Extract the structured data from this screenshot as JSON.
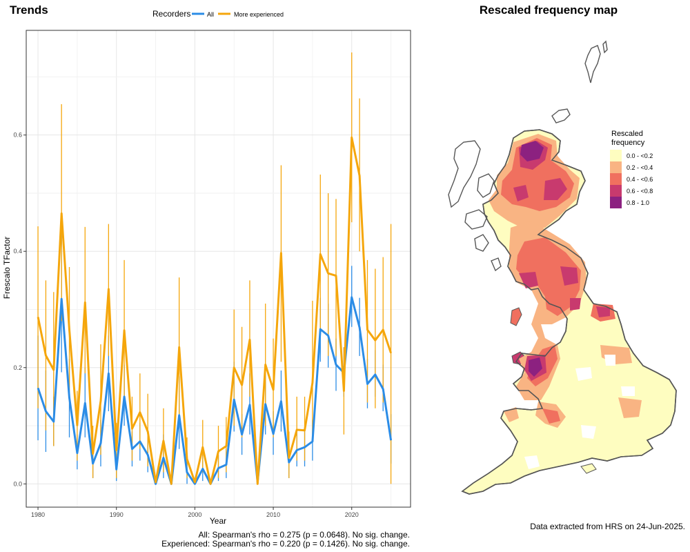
{
  "left_panel": {
    "title": "Trends"
  },
  "right_panel": {
    "title": "Rescaled frequency map"
  },
  "stats": [
    "All: Spearman's rho = 0.275 (p = 0.0648). No sig. change.",
    "Experienced: Spearman's rho = 0.220 (p = 0.1426). No sig. change."
  ],
  "credit": "Data extracted from HRS on 24-Jun-2025.",
  "map_legend": {
    "title_lines": [
      "Rescaled",
      "frequency"
    ],
    "items": [
      {
        "label": "0.0 - <0.2",
        "color": "#fefdc0"
      },
      {
        "label": "0.2 - <0.4",
        "color": "#f9b483"
      },
      {
        "label": "0.4 - <0.6",
        "color": "#f0705f"
      },
      {
        "label": "0.6 - <0.8",
        "color": "#c83a6e"
      },
      {
        "label": "0.8 - 1.0",
        "color": "#8c2180"
      }
    ]
  },
  "chart_data": {
    "type": "line",
    "xlabel": "Year",
    "ylabel": "Frescalo TFactor",
    "xlim": [
      1978.5,
      2027.5
    ],
    "ylim": [
      -0.04,
      0.78
    ],
    "x_ticks": [
      1980,
      1990,
      2000,
      2010,
      2020
    ],
    "y_ticks": [
      0.0,
      0.2,
      0.4,
      0.6
    ],
    "y_tick_labels": [
      "0.0",
      "0.2",
      "0.4",
      "0.6"
    ],
    "grid": true,
    "legend": {
      "title": "Recorders",
      "position": "top"
    },
    "x": [
      1980,
      1981,
      1982,
      1983,
      1984,
      1985,
      1986,
      1987,
      1988,
      1989,
      1990,
      1991,
      1992,
      1993,
      1994,
      1995,
      1996,
      1997,
      1998,
      1999,
      2000,
      2001,
      2002,
      2003,
      2004,
      2005,
      2006,
      2007,
      2008,
      2009,
      2010,
      2011,
      2012,
      2013,
      2014,
      2015,
      2016,
      2017,
      2018,
      2019,
      2020,
      2021,
      2022,
      2023,
      2024,
      2025
    ],
    "series": [
      {
        "name": "All",
        "color": "#2b8ce6",
        "values": [
          0.165,
          0.125,
          0.107,
          0.318,
          0.148,
          0.053,
          0.139,
          0.035,
          0.07,
          0.19,
          0.025,
          0.15,
          0.06,
          0.073,
          0.05,
          0.0,
          0.045,
          0.0,
          0.118,
          0.02,
          0.0,
          0.026,
          0.0,
          0.027,
          0.033,
          0.145,
          0.085,
          0.136,
          0.003,
          0.137,
          0.086,
          0.142,
          0.037,
          0.058,
          0.063,
          0.073,
          0.266,
          0.255,
          0.205,
          0.191,
          0.321,
          0.269,
          0.172,
          0.188,
          0.163,
          0.075
        ],
        "lower": [
          0.075,
          0.055,
          0.065,
          0.192,
          0.08,
          0.025,
          0.08,
          0.01,
          0.03,
          0.125,
          0.005,
          0.1,
          0.03,
          0.04,
          0.02,
          0.0,
          0.01,
          0.0,
          0.06,
          0.0,
          0.0,
          0.005,
          0.0,
          0.005,
          0.01,
          0.09,
          0.05,
          0.085,
          0.0,
          0.085,
          0.05,
          0.09,
          0.01,
          0.03,
          0.03,
          0.04,
          0.21,
          0.2,
          0.16,
          0.15,
          0.27,
          0.22,
          0.13,
          0.15,
          0.125,
          0.035
        ],
        "upper": [
          0.255,
          0.195,
          0.15,
          0.445,
          0.215,
          0.085,
          0.2,
          0.06,
          0.11,
          0.255,
          0.045,
          0.205,
          0.09,
          0.105,
          0.08,
          0.0,
          0.085,
          0.0,
          0.185,
          0.04,
          0.0,
          0.05,
          0.0,
          0.05,
          0.06,
          0.21,
          0.12,
          0.19,
          0.01,
          0.19,
          0.125,
          0.195,
          0.065,
          0.09,
          0.095,
          0.11,
          0.32,
          0.31,
          0.25,
          0.235,
          0.375,
          0.32,
          0.215,
          0.23,
          0.205,
          0.12
        ]
      },
      {
        "name": "More experienced",
        "color": "#f5a60b",
        "values": [
          0.287,
          0.221,
          0.196,
          0.465,
          0.265,
          0.101,
          0.312,
          0.052,
          0.143,
          0.335,
          0.058,
          0.264,
          0.095,
          0.123,
          0.09,
          0.003,
          0.074,
          0.0,
          0.235,
          0.043,
          0.003,
          0.063,
          0.0,
          0.056,
          0.065,
          0.2,
          0.17,
          0.248,
          0.0,
          0.205,
          0.162,
          0.397,
          0.045,
          0.093,
          0.092,
          0.174,
          0.395,
          0.362,
          0.358,
          0.16,
          0.596,
          0.53,
          0.265,
          0.247,
          0.265,
          0.225
        ],
        "lower": [
          0.13,
          0.092,
          0.065,
          0.28,
          0.16,
          0.04,
          0.19,
          0.01,
          0.05,
          0.22,
          0.01,
          0.14,
          0.04,
          0.06,
          0.03,
          0.0,
          0.02,
          0.0,
          0.12,
          0.01,
          0.0,
          0.02,
          0.0,
          0.01,
          0.02,
          0.1,
          0.08,
          0.15,
          0.0,
          0.1,
          0.08,
          0.21,
          0.01,
          0.04,
          0.04,
          0.08,
          0.255,
          0.22,
          0.22,
          0.085,
          0.45,
          0.4,
          0.14,
          0.13,
          0.14,
          0.0
        ],
        "upper": [
          0.443,
          0.35,
          0.33,
          0.653,
          0.373,
          0.16,
          0.442,
          0.1,
          0.24,
          0.447,
          0.105,
          0.385,
          0.15,
          0.19,
          0.155,
          0.01,
          0.13,
          0.0,
          0.355,
          0.08,
          0.01,
          0.11,
          0.0,
          0.1,
          0.115,
          0.3,
          0.27,
          0.35,
          0.0,
          0.31,
          0.25,
          0.548,
          0.09,
          0.15,
          0.15,
          0.315,
          0.532,
          0.5,
          0.49,
          0.235,
          0.742,
          0.663,
          0.385,
          0.37,
          0.39,
          0.447
        ]
      }
    ]
  }
}
